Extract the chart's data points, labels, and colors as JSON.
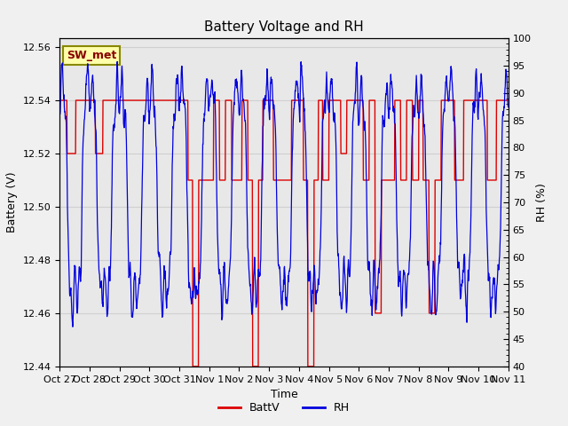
{
  "title": "Battery Voltage and RH",
  "xlabel": "Time",
  "ylabel_left": "Battery (V)",
  "ylabel_right": "RH (%)",
  "annotation": "SW_met",
  "ylim_left": [
    12.44,
    12.5633
  ],
  "ylim_right": [
    40,
    100
  ],
  "yticks_left": [
    12.44,
    12.46,
    12.48,
    12.5,
    12.52,
    12.54,
    12.56
  ],
  "yticks_right": [
    40,
    45,
    50,
    55,
    60,
    65,
    70,
    75,
    80,
    85,
    90,
    95,
    100
  ],
  "xtick_labels": [
    "Oct 27",
    "Oct 28",
    "Oct 29",
    "Oct 30",
    "Oct 31",
    "Nov 1",
    "Nov 2",
    "Nov 3",
    "Nov 4",
    "Nov 5",
    "Nov 6",
    "Nov 7",
    "Nov 8",
    "Nov 9",
    "Nov 10",
    "Nov 11"
  ],
  "plot_bg_color": "#e8e8e8",
  "fig_bg_color": "#f0f0f0",
  "grid_color": "#d0d0d0",
  "batt_color": "#dd0000",
  "rh_color": "#0000dd",
  "legend_batt": "BattV",
  "legend_rh": "RH",
  "annotation_bg": "#ffffaa",
  "annotation_border": "#888800",
  "annotation_text_color": "#880000"
}
